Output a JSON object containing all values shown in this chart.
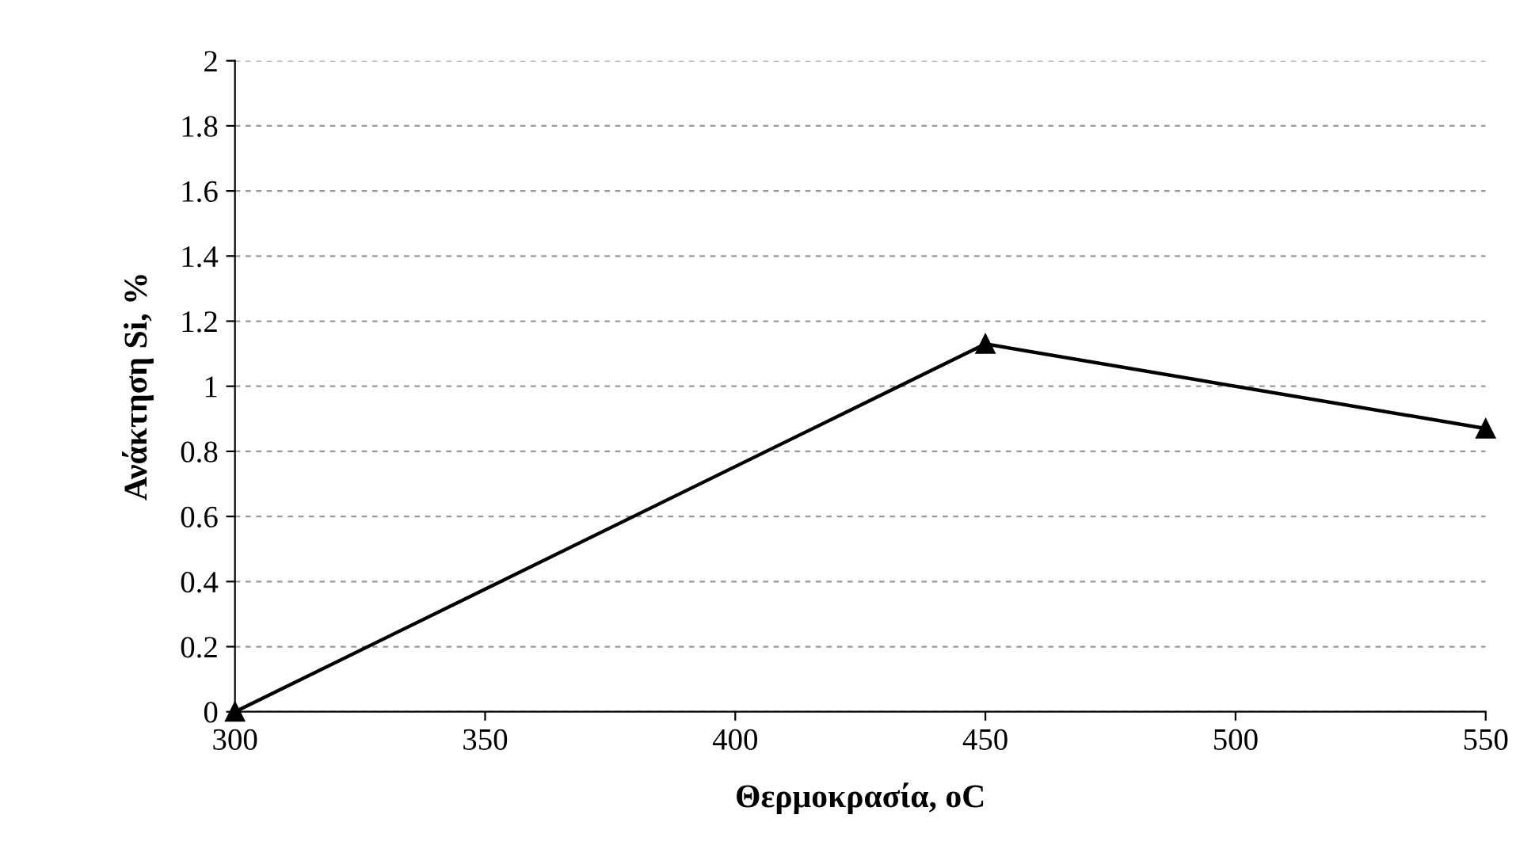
{
  "chart_data": {
    "type": "line",
    "xlabel": "Θερμοκρασία, oC",
    "ylabel": "Ανάκτηση Si, %",
    "x": [
      300,
      450,
      550
    ],
    "series": [
      {
        "color": "#000000",
        "values": [
          0,
          1.13,
          0.87
        ]
      }
    ],
    "xlim": [
      300,
      550
    ],
    "xticks": [
      300,
      350,
      400,
      450,
      500,
      550
    ],
    "ylim": [
      0,
      2
    ],
    "yticks": [
      0,
      {
        "value": 0.2,
        "label": "0.2"
      },
      {
        "value": 0.4,
        "label": "0.4"
      },
      {
        "value": 0.6,
        "label": "0.6"
      },
      {
        "value": 0.8,
        "label": "0.8"
      },
      1,
      {
        "value": 1.2,
        "label": "1.2"
      },
      {
        "value": 1.4,
        "label": "1.4"
      },
      {
        "value": 1.6,
        "label": "1.6"
      },
      {
        "value": 1.8,
        "label": "1.8"
      },
      2
    ],
    "grid": "y",
    "marker": "triangle",
    "line_style": "solid",
    "legend": false
  }
}
